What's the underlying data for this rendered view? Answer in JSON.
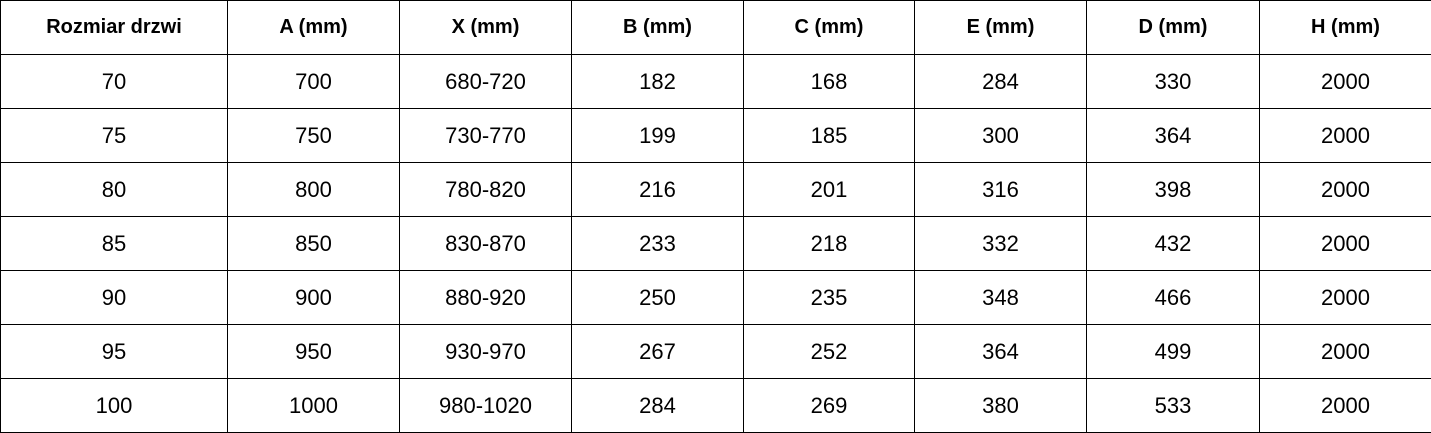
{
  "table": {
    "headers": [
      "Rozmiar drzwi",
      "A (mm)",
      "X (mm)",
      "B (mm)",
      "C (mm)",
      "E (mm)",
      "D (mm)",
      "H (mm)"
    ],
    "rows": [
      [
        "70",
        "700",
        "680-720",
        "182",
        "168",
        "284",
        "330",
        "2000"
      ],
      [
        "75",
        "750",
        "730-770",
        "199",
        "185",
        "300",
        "364",
        "2000"
      ],
      [
        "80",
        "800",
        "780-820",
        "216",
        "201",
        "316",
        "398",
        "2000"
      ],
      [
        "85",
        "850",
        "830-870",
        "233",
        "218",
        "332",
        "432",
        "2000"
      ],
      [
        "90",
        "900",
        "880-920",
        "250",
        "235",
        "348",
        "466",
        "2000"
      ],
      [
        "95",
        "950",
        "930-970",
        "267",
        "252",
        "364",
        "499",
        "2000"
      ],
      [
        "100",
        "1000",
        "980-1020",
        "284",
        "269",
        "380",
        "533",
        "2000"
      ]
    ]
  }
}
